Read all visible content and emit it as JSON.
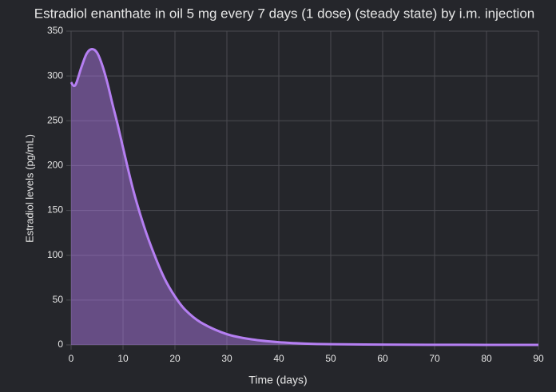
{
  "chart_data": {
    "type": "area",
    "title": "Estradiol enanthate in oil 5 mg every 7 days (1 dose) (steady state) by i.m. injection",
    "x_label": "Time (days)",
    "y_label": "Estradiol levels (pg/mL)",
    "x": [
      0,
      0.5,
      1,
      2,
      3,
      4,
      5,
      6,
      7,
      8,
      9,
      10,
      12,
      14,
      16,
      18,
      20,
      22,
      25,
      30,
      35,
      40,
      45,
      50,
      60,
      70,
      80,
      90
    ],
    "series": [
      {
        "color": "#b57ff2",
        "values": [
          293,
          289,
          292,
          310,
          325,
          330,
          326,
          312,
          292,
          268,
          245,
          220,
          172,
          133,
          101,
          74,
          54,
          39,
          25,
          12,
          6,
          3,
          1.5,
          0.8,
          0.3,
          0.1,
          0.05,
          0.02
        ]
      }
    ],
    "xlim": [
      0,
      90
    ],
    "xticks": [
      0,
      10,
      20,
      30,
      40,
      50,
      60,
      70,
      80,
      90
    ],
    "ylim": [
      0,
      350
    ],
    "yticks": [
      0,
      50,
      100,
      150,
      200,
      250,
      300,
      350
    ],
    "grid": true
  }
}
